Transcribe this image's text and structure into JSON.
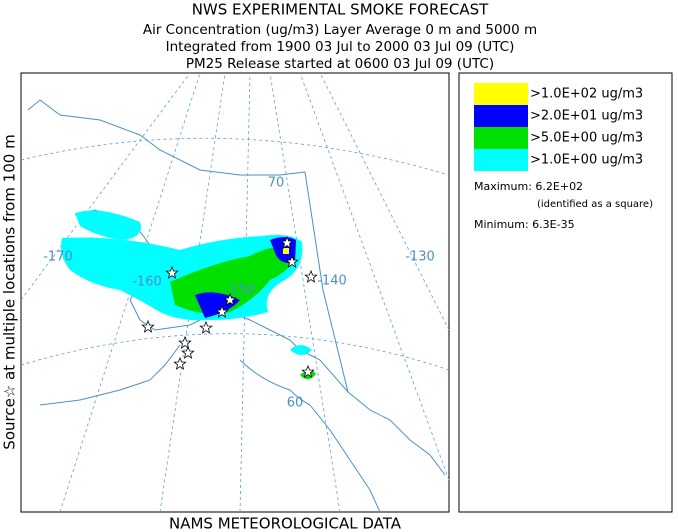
{
  "header": {
    "title": "NWS EXPERIMENTAL SMOKE FORECAST",
    "lines": [
      "Air Concentration (ug/m3) Layer Average    0 m and  5000 m",
      "Integrated from 1900 03 Jul to 2000 03 Jul 09 (UTC)",
      "PM25 Release started at 0600 03 Jul 09 (UTC)"
    ]
  },
  "side_label": "Source☆  at multiple locations   from   100 m",
  "footer": "NAMS METEOROLOGICAL DATA",
  "map": {
    "grid_labels": [
      "-170",
      "-160",
      "-150",
      "-140",
      "-130",
      "70",
      "60"
    ]
  },
  "legend": {
    "items": [
      {
        "label": ">1.0E+02 ug/m3",
        "color": "#ffff00"
      },
      {
        "label": ">2.0E+01 ug/m3",
        "color": "#0000ff"
      },
      {
        "label": ">5.0E+00 ug/m3",
        "color": "#00e000"
      },
      {
        "label": ">1.0E+00 ug/m3",
        "color": "#00ffff"
      }
    ],
    "maximum": "Maximum: 6.2E+02",
    "maximum_note": "(identified as a square)",
    "minimum": "Minimum: 6.3E-35"
  }
}
